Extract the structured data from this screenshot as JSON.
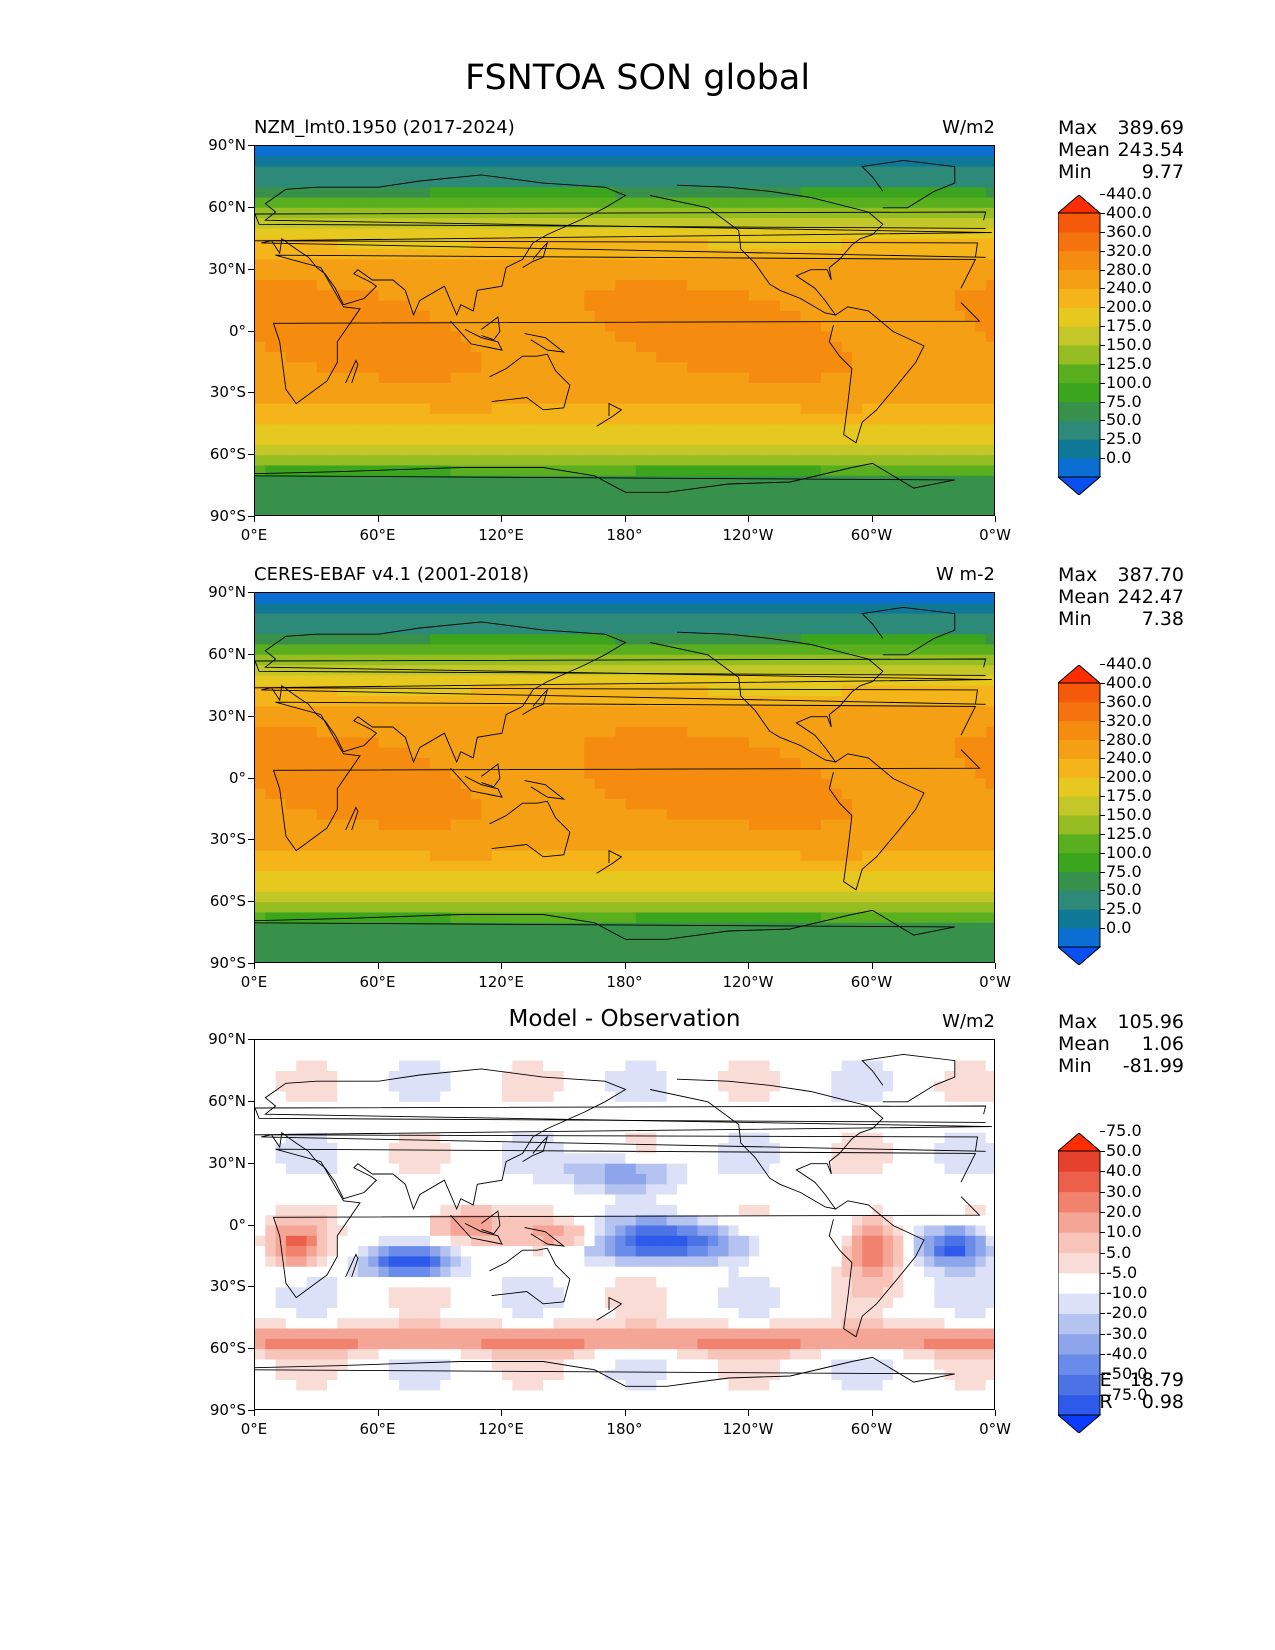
{
  "title": "FSNTOA SON global",
  "axes": {
    "lat_ticks": [
      "90°N",
      "60°N",
      "30°N",
      "0°",
      "30°S",
      "60°S",
      "90°S"
    ],
    "lon_ticks": [
      "0°E",
      "60°E",
      "120°E",
      "180°",
      "120°W",
      "60°W",
      "0°W"
    ]
  },
  "panels": [
    {
      "left_title": "NZM_lmt0.1950 (2017-2024)",
      "center_title": "",
      "units": "W/m2",
      "stats": [
        {
          "label": "Max",
          "value": "389.69"
        },
        {
          "label": "Mean",
          "value": "243.54"
        },
        {
          "label": "Min",
          "value": "9.77"
        }
      ],
      "extra_stats": []
    },
    {
      "left_title": "CERES-EBAF v4.1 (2001-2018)",
      "center_title": "",
      "units": "W m-2",
      "stats": [
        {
          "label": "Max",
          "value": "387.70"
        },
        {
          "label": "Mean",
          "value": "242.47"
        },
        {
          "label": "Min",
          "value": "7.38"
        }
      ],
      "extra_stats": []
    },
    {
      "left_title": "",
      "center_title": "Model - Observation",
      "units": "W/m2",
      "stats": [
        {
          "label": "Max",
          "value": "105.96"
        },
        {
          "label": "Mean",
          "value": "1.06"
        },
        {
          "label": "Min",
          "value": "-81.99"
        }
      ],
      "extra_stats": [
        {
          "label": "RMSE",
          "value": "18.79"
        },
        {
          "label": "CORR",
          "value": "0.98"
        }
      ]
    }
  ],
  "colorbar_main": {
    "levels": [
      "0.0",
      "25.0",
      "50.0",
      "75.0",
      "100.0",
      "125.0",
      "150.0",
      "175.0",
      "200.0",
      "240.0",
      "280.0",
      "320.0",
      "360.0",
      "400.0",
      "440.0"
    ],
    "colors": [
      "#0a4ff0",
      "#0a6ed2",
      "#0f7896",
      "#2d8a78",
      "#37914b",
      "#3ca51e",
      "#5aaf1e",
      "#96be23",
      "#c3c828",
      "#e6c81e",
      "#f5b419",
      "#f5a014",
      "#f58c0f",
      "#f5730f",
      "#f55a0a",
      "#ff2d00"
    ]
  },
  "colorbar_diff": {
    "levels": [
      "-75.0",
      "-50.0",
      "-40.0",
      "-30.0",
      "-20.0",
      "-10.0",
      "-5.0",
      "5.0",
      "10.0",
      "20.0",
      "30.0",
      "40.0",
      "50.0",
      "75.0"
    ],
    "colors": [
      "#0a3cff",
      "#2d5aeb",
      "#4b73e6",
      "#698ceb",
      "#8ca5eb",
      "#b4c3f0",
      "#dce1f8",
      "#ffffff",
      "#fadcd7",
      "#f8c3b9",
      "#f5a596",
      "#f0826e",
      "#eb5f4b",
      "#e6412d",
      "#ff2d00"
    ]
  },
  "chart_data": [
    {
      "type": "heatmap",
      "title": "NZM_lmt0.1950 (2017-2024)",
      "variable": "FSNTOA",
      "season": "SON",
      "units": "W/m2",
      "x": "longitude",
      "xlim": [
        0,
        360
      ],
      "y": "latitude",
      "ylim": [
        -90,
        90
      ],
      "zonal_mean_profile": {
        "lat": [
          90,
          75,
          60,
          45,
          30,
          15,
          0,
          -15,
          -30,
          -45,
          -60,
          -75,
          -90
        ],
        "value": [
          15,
          60,
          140,
          230,
          300,
          320,
          325,
          320,
          300,
          250,
          170,
          80,
          75
        ]
      },
      "contour_levels": [
        0,
        25,
        50,
        75,
        100,
        125,
        150,
        175,
        200,
        240,
        280,
        320,
        360,
        400,
        440
      ],
      "max": 389.69,
      "mean": 243.54,
      "min": 9.77
    },
    {
      "type": "heatmap",
      "title": "CERES-EBAF v4.1 (2001-2018)",
      "variable": "FSNTOA",
      "season": "SON",
      "units": "W m-2",
      "x": "longitude",
      "xlim": [
        0,
        360
      ],
      "y": "latitude",
      "ylim": [
        -90,
        90
      ],
      "zonal_mean_profile": {
        "lat": [
          90,
          75,
          60,
          45,
          30,
          15,
          0,
          -15,
          -30,
          -45,
          -60,
          -75,
          -90
        ],
        "value": [
          15,
          60,
          140,
          230,
          300,
          320,
          325,
          320,
          300,
          250,
          170,
          80,
          75
        ]
      },
      "contour_levels": [
        0,
        25,
        50,
        75,
        100,
        125,
        150,
        175,
        200,
        240,
        280,
        320,
        360,
        400,
        440
      ],
      "max": 387.7,
      "mean": 242.47,
      "min": 7.38
    },
    {
      "type": "heatmap",
      "title": "Model - Observation",
      "units": "W/m2",
      "x": "longitude",
      "xlim": [
        0,
        360
      ],
      "y": "latitude",
      "ylim": [
        -90,
        90
      ],
      "contour_levels": [
        -75,
        -50,
        -40,
        -30,
        -20,
        -10,
        -5,
        5,
        10,
        20,
        30,
        40,
        50,
        75
      ],
      "max": 105.96,
      "mean": 1.06,
      "min": -81.99,
      "rmse": 18.79,
      "corr": 0.98
    }
  ]
}
